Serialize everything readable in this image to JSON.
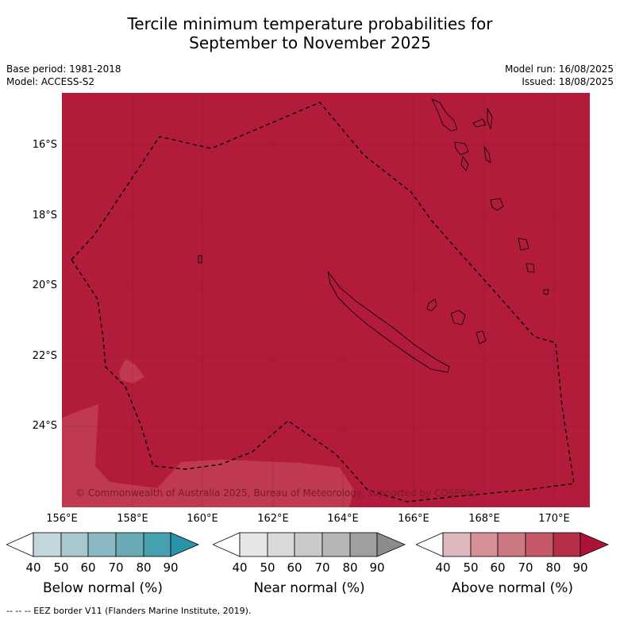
{
  "title_line1": "Tercile minimum temperature probabilities for",
  "title_line2": "September to November 2025",
  "base_period": "Base period: 1981-2018",
  "model": "Model: ACCESS-S2",
  "model_run": "Model run: 16/08/2025",
  "issued": "Issued: 18/08/2025",
  "copyright": "© Commonwealth of Australia 2025, Bureau of Meteorology, supported by COSPPac",
  "map": {
    "lat_labels": [
      "16°S",
      "18°S",
      "20°S",
      "22°S",
      "24°S"
    ],
    "lon_labels": [
      "156°E",
      "158°E",
      "160°E",
      "162°E",
      "164°E",
      "166°E",
      "168°E",
      "170°E"
    ],
    "dominant_category": "Above normal",
    "dominant_probability_range": "80-90",
    "fill_color": "#b21c3a",
    "lighter_patch_color": "#c0394f"
  },
  "colorbars": [
    {
      "name": "below",
      "title": "Below normal (%)",
      "ticks": [
        "40",
        "50",
        "60",
        "70",
        "80",
        "90"
      ],
      "colors": [
        "#ffffff",
        "#c2d6dc",
        "#a7c8cf",
        "#8bb9c3",
        "#6aa9b6",
        "#46a0b0",
        "#2b93a7"
      ]
    },
    {
      "name": "near",
      "title": "Near normal (%)",
      "ticks": [
        "40",
        "50",
        "60",
        "70",
        "80",
        "90"
      ],
      "colors": [
        "#ffffff",
        "#e6e6e6",
        "#d9d9d9",
        "#c9c9c9",
        "#b6b6b6",
        "#9f9f9f",
        "#8c8c8c"
      ]
    },
    {
      "name": "above",
      "title": "Above normal (%)",
      "ticks": [
        "40",
        "50",
        "60",
        "70",
        "80",
        "90"
      ],
      "colors": [
        "#ffffff",
        "#e0b6bd",
        "#d79097",
        "#cc7880",
        "#c45868",
        "#b52f46",
        "#ab1437"
      ]
    }
  ],
  "legend_note": "--  --  -- EEZ border V11 (Flanders Marine Institute, 2019)."
}
